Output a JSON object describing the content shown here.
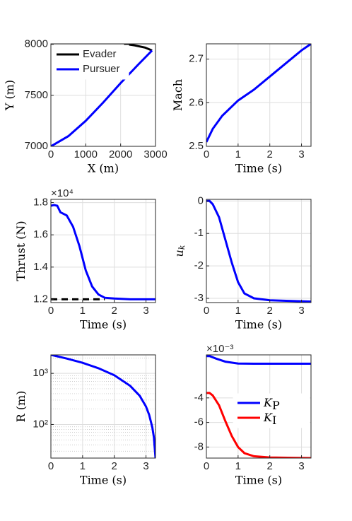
{
  "chart_data": [
    {
      "type": "line",
      "xlabel": "X (m)",
      "ylabel": "Y (m)",
      "xlim": [
        0,
        3000
      ],
      "xticks": [
        0,
        1000,
        2000,
        3000
      ],
      "ylim": [
        7000,
        8005
      ],
      "yticks": [
        7000,
        7500,
        8000
      ],
      "grid": true,
      "legend": "upper left",
      "series": [
        {
          "name": "Evader",
          "color": "#000000",
          "x": [
            2100,
            2400,
            2700,
            2900
          ],
          "values": [
            8005,
            7990,
            7968,
            7940
          ]
        },
        {
          "name": "Pursuer",
          "color": "#0000ff",
          "x": [
            0,
            500,
            1000,
            1500,
            2000,
            2500,
            2900
          ],
          "values": [
            7000,
            7100,
            7250,
            7430,
            7620,
            7800,
            7940
          ]
        }
      ]
    },
    {
      "type": "line",
      "xlabel": "Time (s)",
      "ylabel": "Mach",
      "xlim": [
        0,
        3.3
      ],
      "xticks": [
        0,
        1,
        2,
        3
      ],
      "ylim": [
        2.5,
        2.735
      ],
      "yticks": [
        2.5,
        2.6,
        2.7
      ],
      "grid": true,
      "series": [
        {
          "color": "#0000ff",
          "x": [
            0,
            0.2,
            0.5,
            1,
            1.5,
            2,
            2.5,
            3,
            3.3
          ],
          "values": [
            2.51,
            2.54,
            2.57,
            2.605,
            2.63,
            2.66,
            2.69,
            2.72,
            2.735
          ]
        }
      ]
    },
    {
      "type": "line",
      "xlabel": "Time (s)",
      "ylabel": "Thrust (N)",
      "y_multiplier": "×10⁴",
      "xlim": [
        0,
        3.3
      ],
      "xticks": [
        0,
        1,
        2,
        3
      ],
      "ylim": [
        1.18,
        1.82
      ],
      "yticks": [
        1.2,
        1.4,
        1.6,
        1.8
      ],
      "grid": true,
      "series": [
        {
          "color": "#000000",
          "dash": true,
          "x": [
            0,
            1.7
          ],
          "values": [
            1.2,
            1.2
          ]
        },
        {
          "color": "#0000ff",
          "x": [
            0,
            0.1,
            0.2,
            0.3,
            0.5,
            0.7,
            0.9,
            1.1,
            1.3,
            1.5,
            1.7,
            2,
            2.5,
            3,
            3.3
          ],
          "values": [
            1.78,
            1.785,
            1.78,
            1.74,
            1.72,
            1.65,
            1.53,
            1.38,
            1.28,
            1.23,
            1.21,
            1.205,
            1.2,
            1.2,
            1.2
          ]
        }
      ]
    },
    {
      "type": "line",
      "xlabel": "Time (s)",
      "ylabel": "u",
      "ylabel_sub": "k",
      "xlim": [
        0,
        3.3
      ],
      "xticks": [
        0,
        1,
        2,
        3
      ],
      "ylim": [
        -3.13,
        0.05
      ],
      "yticks": [
        -3,
        -2,
        -1,
        0
      ],
      "grid": true,
      "series": [
        {
          "color": "#0000ff",
          "x": [
            0,
            0.1,
            0.2,
            0.4,
            0.6,
            0.8,
            1,
            1.2,
            1.5,
            2,
            3.3
          ],
          "values": [
            0,
            0,
            -0.1,
            -0.5,
            -1.2,
            -1.9,
            -2.5,
            -2.85,
            -3,
            -3.06,
            -3.1
          ]
        }
      ]
    },
    {
      "type": "line",
      "xlabel": "Time (s)",
      "ylabel": "R (m)",
      "log_y": true,
      "xlim": [
        0,
        3.3
      ],
      "xticks": [
        0,
        1,
        2,
        3
      ],
      "ylim": [
        22,
        2300
      ],
      "yticks": [
        {
          "value": 100,
          "label": "10²"
        },
        {
          "value": 1000,
          "label": "10³"
        }
      ],
      "yminorticks": [
        30,
        40,
        50,
        60,
        70,
        80,
        90,
        200,
        300,
        400,
        500,
        600,
        700,
        800,
        900,
        2000
      ],
      "grid": true,
      "series": [
        {
          "color": "#0000ff",
          "x": [
            0,
            0.5,
            1,
            1.5,
            2,
            2.5,
            2.8,
            3,
            3.1,
            3.2,
            3.25,
            3.3
          ],
          "values": [
            2300,
            1950,
            1610,
            1260,
            920,
            570,
            365,
            225,
            155,
            88,
            55,
            22
          ]
        }
      ]
    },
    {
      "type": "line",
      "xlabel": "Time (s)",
      "y_multiplier": "×10⁻³",
      "xlim": [
        0,
        3.3
      ],
      "xticks": [
        0,
        1,
        2,
        3
      ],
      "ylim": [
        -8.9,
        -0.5
      ],
      "yticks": [
        -8,
        -6,
        -4
      ],
      "grid": true,
      "legend": "right",
      "series": [
        {
          "name": "K",
          "subscript": "P",
          "color": "#0000ff",
          "x": [
            0,
            0.1,
            0.3,
            0.6,
            1,
            1.5,
            3.3
          ],
          "values": [
            -0.6,
            -0.6,
            -0.8,
            -1.05,
            -1.2,
            -1.22,
            -1.22
          ]
        },
        {
          "name": "K",
          "subscript": "I",
          "color": "#ff0000",
          "x": [
            0,
            0.1,
            0.2,
            0.4,
            0.6,
            0.8,
            1,
            1.2,
            1.5,
            2,
            3.3
          ],
          "values": [
            -3.6,
            -3.6,
            -3.8,
            -4.6,
            -5.9,
            -7.1,
            -8,
            -8.5,
            -8.75,
            -8.85,
            -8.9
          ]
        }
      ]
    }
  ]
}
